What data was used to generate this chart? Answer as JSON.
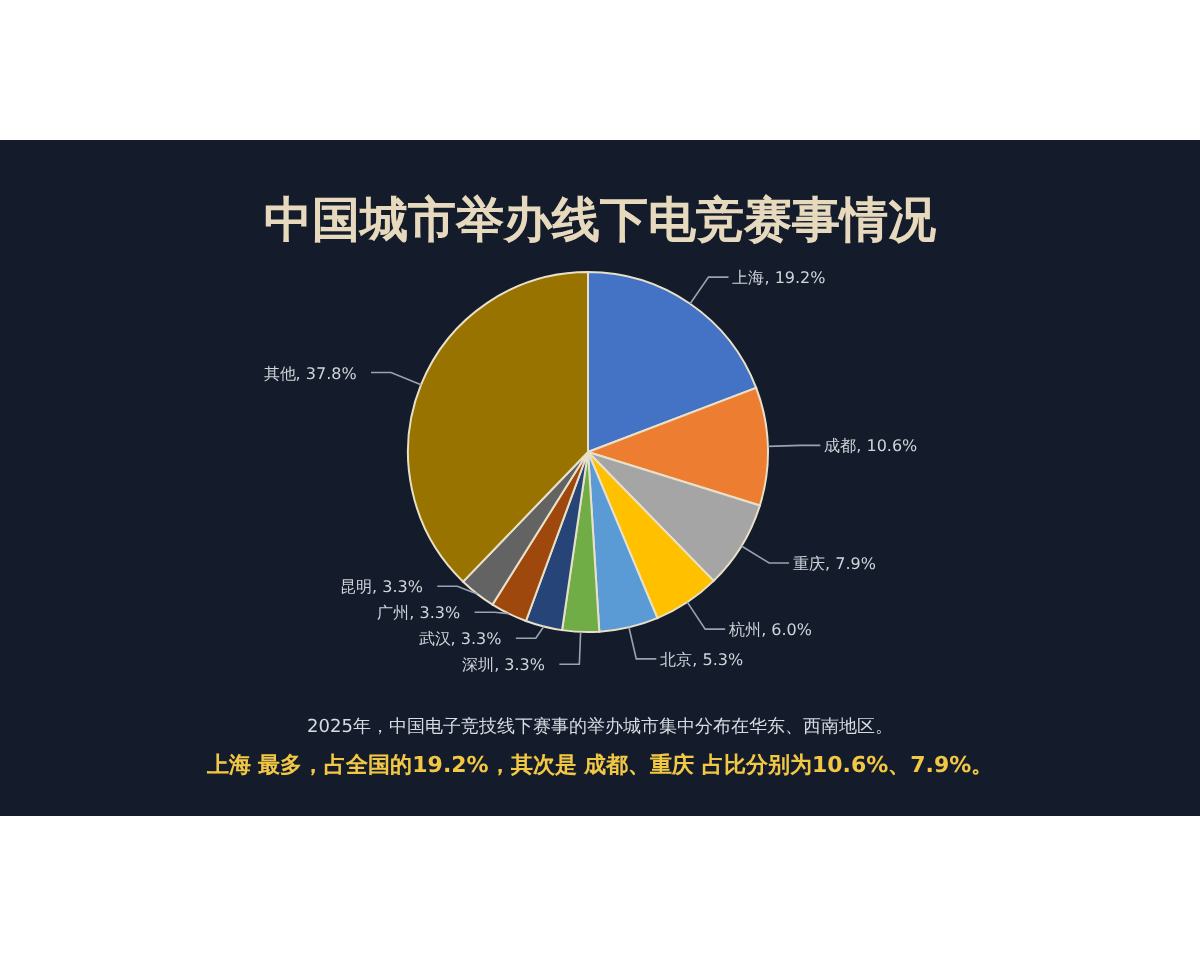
{
  "chart_data": {
    "type": "pie",
    "title": "中国城市举办线下电竞赛事情况",
    "categories": [
      "上海",
      "成都",
      "重庆",
      "杭州",
      "北京",
      "深圳",
      "武汉",
      "广州",
      "昆明",
      "其他"
    ],
    "values": [
      19.2,
      10.6,
      7.9,
      6.0,
      5.3,
      3.3,
      3.3,
      3.3,
      3.3,
      37.8
    ],
    "colors": [
      "#4472c4",
      "#ed7d31",
      "#a5a5a5",
      "#ffc000",
      "#5b9bd5",
      "#70ad47",
      "#264478",
      "#9e480e",
      "#636363",
      "#997300"
    ],
    "value_labels": [
      ", 19.2%",
      ", 10.6%",
      ", 7.9%",
      ", 6.0%",
      ", 5.3%",
      ", 3.3%",
      ", 3.3%",
      ", 3.3%",
      ", 3.3%",
      ", 37.8%"
    ],
    "annotations": [
      "2025年，中国电子竞技线下赛事的举办城市集中分布在华东、西南地区。",
      "上海 最多，占全国的19.2%，其次是 成都、重庆 占比分别为10.6%、7.9%。"
    ]
  }
}
